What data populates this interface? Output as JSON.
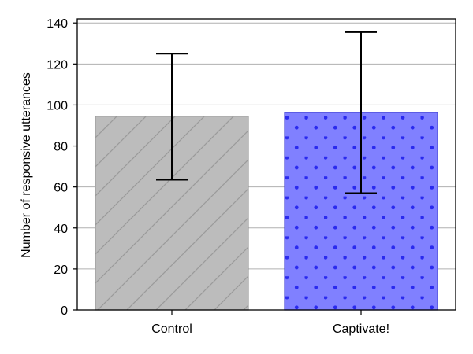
{
  "chart_data": {
    "type": "bar",
    "title": "",
    "xlabel": "",
    "ylabel": "Number of responsive utterances",
    "categories": [
      "Control",
      "Captivate!"
    ],
    "values": [
      94.5,
      96.3
    ],
    "error_low": [
      63.5,
      57.0
    ],
    "error_high": [
      125.0,
      135.5
    ],
    "ylim": [
      0,
      142
    ],
    "yticks": [
      0,
      20,
      40,
      60,
      80,
      100,
      120,
      140
    ],
    "grid": "horizontal",
    "bar_styles": [
      {
        "fill": "#bcbcbc",
        "stroke": "#9a9a9a",
        "pattern": "diagonal-hatch",
        "pattern_color": "#9a9a9a"
      },
      {
        "fill": "#8080ff",
        "stroke": "#4b4bd6",
        "pattern": "dots",
        "pattern_color": "#2a2aee"
      }
    ],
    "grid_color": "#b0b0b0",
    "error_bar_color": "#000000"
  }
}
